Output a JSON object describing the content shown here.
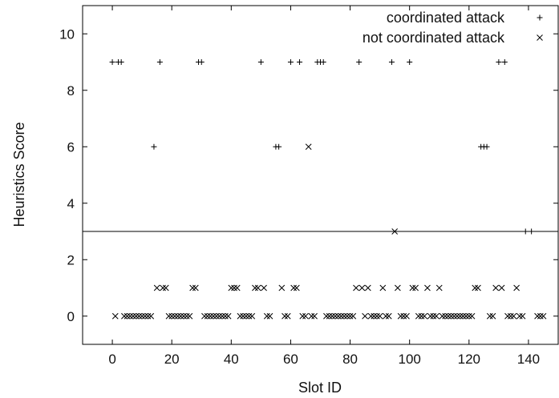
{
  "chart_data": {
    "type": "scatter",
    "xlabel": "Slot ID",
    "ylabel": "Heuristics Score",
    "xlim": [
      -10,
      150
    ],
    "ylim": [
      -1,
      11
    ],
    "xticks": [
      0,
      20,
      40,
      60,
      80,
      100,
      120,
      140
    ],
    "yticks": [
      0,
      2,
      4,
      6,
      8,
      10
    ],
    "legend_position": "top-right",
    "threshold": 3,
    "series": [
      {
        "name": "coordinated attack",
        "marker": "plus",
        "points": [
          [
            0,
            9
          ],
          [
            2,
            9
          ],
          [
            3,
            9
          ],
          [
            14,
            6
          ],
          [
            16,
            9
          ],
          [
            29,
            9
          ],
          [
            30,
            9
          ],
          [
            50,
            9
          ],
          [
            55,
            6
          ],
          [
            56,
            6
          ],
          [
            60,
            9
          ],
          [
            63,
            9
          ],
          [
            69,
            9
          ],
          [
            70,
            9
          ],
          [
            71,
            9
          ],
          [
            83,
            9
          ],
          [
            94,
            9
          ],
          [
            100,
            9
          ],
          [
            124,
            6
          ],
          [
            125,
            6
          ],
          [
            126,
            6
          ],
          [
            130,
            9
          ],
          [
            132,
            9
          ],
          [
            139,
            3
          ],
          [
            141,
            3
          ]
        ]
      },
      {
        "name": "not coordinated attack",
        "marker": "cross",
        "points": [
          [
            15,
            1
          ],
          [
            17,
            1
          ],
          [
            18,
            1
          ],
          [
            27,
            1
          ],
          [
            28,
            1
          ],
          [
            40,
            1
          ],
          [
            41,
            1
          ],
          [
            42,
            1
          ],
          [
            48,
            1
          ],
          [
            49,
            1
          ],
          [
            51,
            1
          ],
          [
            57,
            1
          ],
          [
            61,
            1
          ],
          [
            62,
            1
          ],
          [
            82,
            1
          ],
          [
            84,
            1
          ],
          [
            86,
            1
          ],
          [
            91,
            1
          ],
          [
            96,
            1
          ],
          [
            101,
            1
          ],
          [
            102,
            1
          ],
          [
            106,
            1
          ],
          [
            110,
            1
          ],
          [
            122,
            1
          ],
          [
            123,
            1
          ],
          [
            129,
            1
          ],
          [
            131,
            1
          ],
          [
            136,
            1
          ],
          [
            66,
            6
          ],
          [
            95,
            3
          ],
          [
            1,
            0
          ],
          [
            4,
            0
          ],
          [
            5,
            0
          ],
          [
            6,
            0
          ],
          [
            7,
            0
          ],
          [
            8,
            0
          ],
          [
            9,
            0
          ],
          [
            10,
            0
          ],
          [
            11,
            0
          ],
          [
            12,
            0
          ],
          [
            13,
            0
          ],
          [
            19,
            0
          ],
          [
            20,
            0
          ],
          [
            21,
            0
          ],
          [
            22,
            0
          ],
          [
            23,
            0
          ],
          [
            24,
            0
          ],
          [
            25,
            0
          ],
          [
            26,
            0
          ],
          [
            31,
            0
          ],
          [
            32,
            0
          ],
          [
            33,
            0
          ],
          [
            34,
            0
          ],
          [
            35,
            0
          ],
          [
            36,
            0
          ],
          [
            37,
            0
          ],
          [
            38,
            0
          ],
          [
            39,
            0
          ],
          [
            43,
            0
          ],
          [
            44,
            0
          ],
          [
            45,
            0
          ],
          [
            46,
            0
          ],
          [
            47,
            0
          ],
          [
            52,
            0
          ],
          [
            53,
            0
          ],
          [
            58,
            0
          ],
          [
            59,
            0
          ],
          [
            64,
            0
          ],
          [
            65,
            0
          ],
          [
            67,
            0
          ],
          [
            68,
            0
          ],
          [
            72,
            0
          ],
          [
            73,
            0
          ],
          [
            74,
            0
          ],
          [
            75,
            0
          ],
          [
            76,
            0
          ],
          [
            77,
            0
          ],
          [
            78,
            0
          ],
          [
            79,
            0
          ],
          [
            80,
            0
          ],
          [
            81,
            0
          ],
          [
            85,
            0
          ],
          [
            87,
            0
          ],
          [
            88,
            0
          ],
          [
            89,
            0
          ],
          [
            90,
            0
          ],
          [
            92,
            0
          ],
          [
            93,
            0
          ],
          [
            97,
            0
          ],
          [
            98,
            0
          ],
          [
            99,
            0
          ],
          [
            103,
            0
          ],
          [
            104,
            0
          ],
          [
            105,
            0
          ],
          [
            107,
            0
          ],
          [
            108,
            0
          ],
          [
            109,
            0
          ],
          [
            111,
            0
          ],
          [
            112,
            0
          ],
          [
            113,
            0
          ],
          [
            114,
            0
          ],
          [
            115,
            0
          ],
          [
            116,
            0
          ],
          [
            117,
            0
          ],
          [
            118,
            0
          ],
          [
            119,
            0
          ],
          [
            120,
            0
          ],
          [
            121,
            0
          ],
          [
            127,
            0
          ],
          [
            128,
            0
          ],
          [
            133,
            0
          ],
          [
            134,
            0
          ],
          [
            135,
            0
          ],
          [
            137,
            0
          ],
          [
            138,
            0
          ],
          [
            143,
            0
          ],
          [
            144,
            0
          ],
          [
            145,
            0
          ]
        ]
      }
    ]
  }
}
